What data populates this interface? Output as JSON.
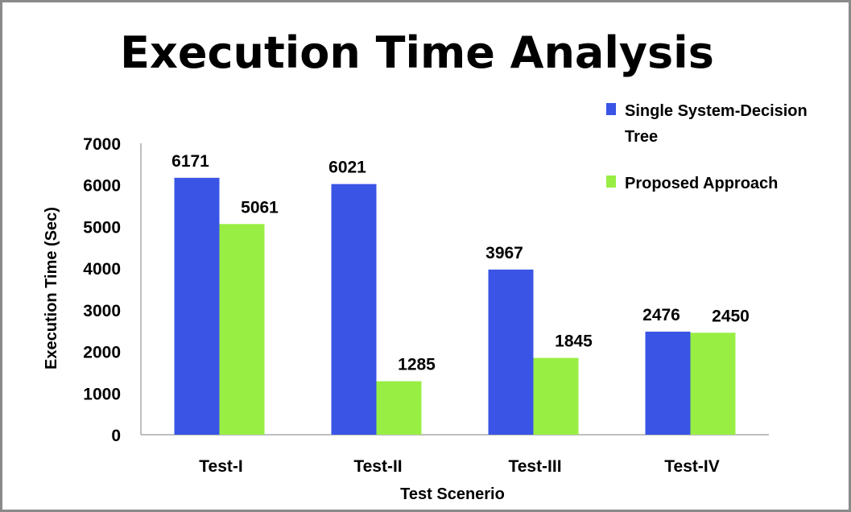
{
  "chart_data": {
    "type": "bar",
    "title": "Execution Time Analysis",
    "xlabel": "Test Scenerio",
    "ylabel": "Execution Time (Sec)",
    "ylim": [
      0,
      7000
    ],
    "yticks": [
      "0",
      "1000",
      "2000",
      "3000",
      "4000",
      "5000",
      "6000",
      "7000"
    ],
    "categories": [
      "Test-I",
      "Test-II",
      "Test-III",
      "Test-IV"
    ],
    "series": [
      {
        "name": "Single System-Decision Tree",
        "name_lines": [
          "Single System-Decision",
          "Tree"
        ],
        "values": [
          6171,
          6021,
          3967,
          2476
        ],
        "color": "#3a54e6"
      },
      {
        "name": "Proposed Approach",
        "name_lines": [
          "Proposed Approach"
        ],
        "values": [
          5061,
          1285,
          1845,
          2450
        ],
        "color": "#99ee44"
      }
    ],
    "grid": false,
    "legend": "right"
  }
}
